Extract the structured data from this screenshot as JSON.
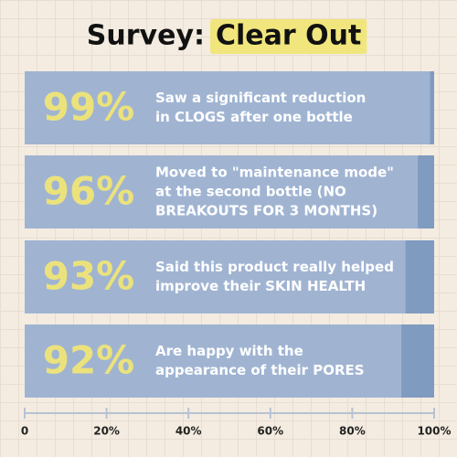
{
  "chart_data": {
    "type": "hbar",
    "title": "Survey:",
    "title_highlight": "Clear Out",
    "categories": [
      [
        "Saw a significant reduction",
        "in CLOGS after one bottle"
      ],
      [
        "Moved to \"maintenance mode\"",
        "at the second bottle (NO",
        "BREAKOUTS FOR 3 MONTHS)"
      ],
      [
        "Said this product really helped",
        "improve their SKIN HEALTH"
      ],
      [
        "Are happy with the",
        "appearance of their PORES"
      ]
    ],
    "values": [
      99,
      96,
      93,
      92
    ],
    "value_labels": [
      "99%",
      "96%",
      "93%",
      "92%"
    ],
    "color": "#a0b4d2",
    "track_color": "#7f9bc0",
    "label_color": "#ebe27c",
    "highlight_color": "#f1e67d",
    "xlim": [
      0,
      100
    ],
    "xticks": [
      0,
      {
        "value": 20,
        "label": "20%"
      },
      {
        "value": 40,
        "label": "40%"
      },
      {
        "value": 60,
        "label": "60%"
      },
      {
        "value": 80,
        "label": "80%"
      },
      {
        "value": 100,
        "label": "100%"
      }
    ]
  }
}
